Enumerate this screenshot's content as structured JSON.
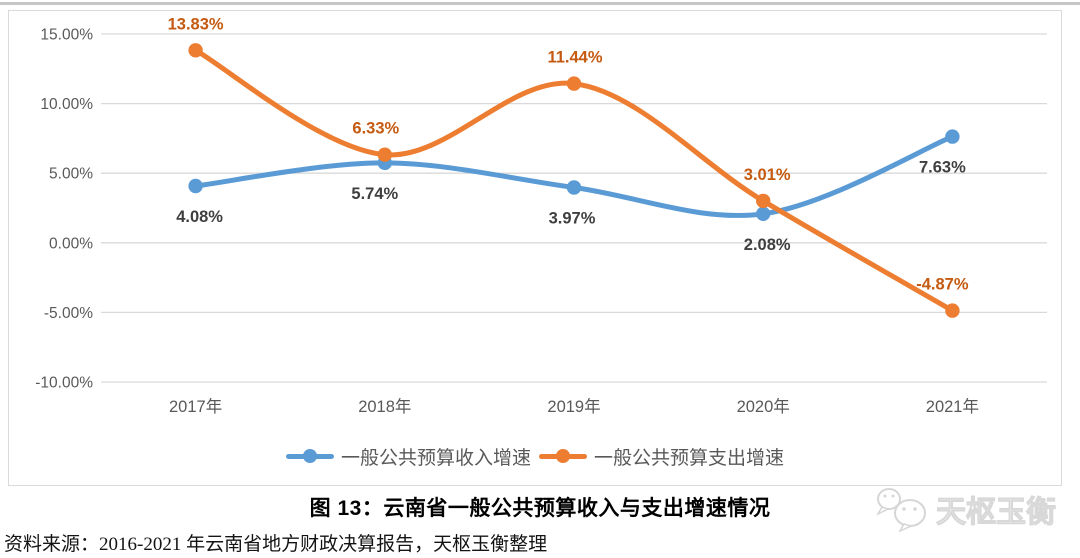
{
  "page": {
    "caption": "图 13：云南省一般公共预算收入与支出增速情况",
    "source": "资料来源：2016-2021 年云南省地方财政决算报告，天枢玉衡整理",
    "watermark_text": "天枢玉衡"
  },
  "chart_data": {
    "type": "line",
    "title": "图 13：云南省一般公共预算收入与支出增速情况",
    "categories": [
      "2017年",
      "2018年",
      "2019年",
      "2020年",
      "2021年"
    ],
    "series": [
      {
        "name": "一般公共预算收入增速",
        "values": [
          4.08,
          5.74,
          3.97,
          2.08,
          7.63
        ],
        "labels": [
          "4.08%",
          "5.74%",
          "3.97%",
          "2.08%",
          "7.63%"
        ],
        "color": "#5B9BD5",
        "label_color": "#3f3f3f",
        "label_dy": 30,
        "label_dx": [
          4,
          -10,
          -2,
          4,
          -10
        ]
      },
      {
        "name": "一般公共预算支出增速",
        "values": [
          13.83,
          6.33,
          11.44,
          3.01,
          -4.87
        ],
        "labels": [
          "13.83%",
          "6.33%",
          "11.44%",
          "3.01%",
          "-4.87%"
        ],
        "color": "#ED7D31",
        "label_color": "#C55A11",
        "label_dy": -27,
        "label_dx": [
          0,
          -9,
          1,
          4,
          -10
        ]
      }
    ],
    "y_axis": {
      "min": -10,
      "max": 15,
      "step": 5,
      "ticks": [
        {
          "value": 15,
          "label": "15.00%"
        },
        {
          "value": 10,
          "label": "10.00%"
        },
        {
          "value": 5,
          "label": "5.00%"
        },
        {
          "value": 0,
          "label": "0.00%"
        },
        {
          "value": -5,
          "label": "-5.00%"
        },
        {
          "value": -10,
          "label": "-10.00%"
        }
      ]
    },
    "grid": true,
    "smooth": true,
    "legend_position": "bottom",
    "grid_color": "#d9d9d9",
    "axis_text_color": "#595959"
  }
}
